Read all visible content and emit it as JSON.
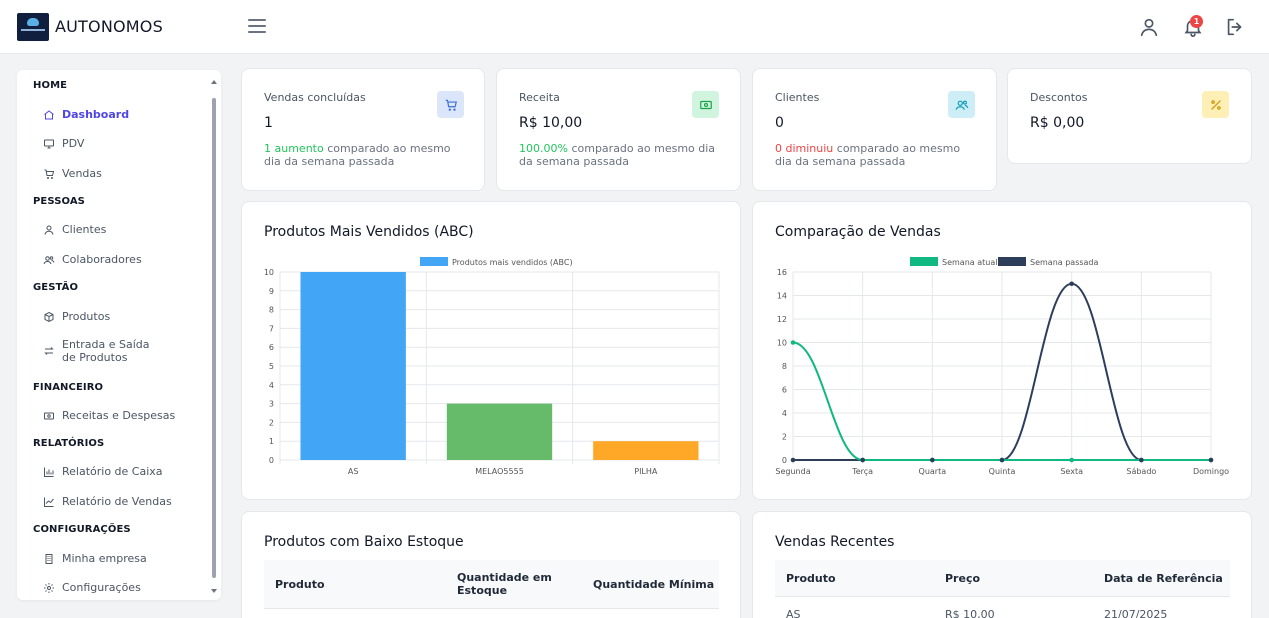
{
  "app": {
    "brand": "AUTONOMOS",
    "notification_count": "1"
  },
  "sidebar": {
    "sections": [
      {
        "label": "HOME",
        "items": [
          {
            "label": "Dashboard",
            "icon": "home-icon",
            "active": true
          },
          {
            "label": "PDV",
            "icon": "monitor-icon"
          },
          {
            "label": "Vendas",
            "icon": "cart-icon"
          }
        ]
      },
      {
        "label": "PESSOAS",
        "items": [
          {
            "label": "Clientes",
            "icon": "user-icon"
          },
          {
            "label": "Colaboradores",
            "icon": "users-icon"
          }
        ]
      },
      {
        "label": "GESTÃO",
        "items": [
          {
            "label": "Produtos",
            "icon": "box-icon"
          },
          {
            "label": "Entrada e Saída de Produtos",
            "icon": "transfer-icon"
          }
        ]
      },
      {
        "label": "FINANCEIRO",
        "items": [
          {
            "label": "Receitas e Despesas",
            "icon": "money-icon"
          }
        ]
      },
      {
        "label": "RELATÓRIOS",
        "items": [
          {
            "label": "Relatório de Caixa",
            "icon": "bar-chart-icon"
          },
          {
            "label": "Relatório de Vendas",
            "icon": "line-chart-icon"
          }
        ]
      },
      {
        "label": "CONFIGURAÇÕES",
        "items": [
          {
            "label": "Minha empresa",
            "icon": "building-icon"
          },
          {
            "label": "Configurações",
            "icon": "gear-icon"
          }
        ]
      }
    ]
  },
  "stats": [
    {
      "title": "Vendas concluídas",
      "value": "1",
      "highlight": "1 aumento",
      "highlight_color": "#22c55e",
      "note": " comparado ao mesmo dia da semana passada",
      "icon": "cart-icon",
      "icon_bg": "#dbe6fb",
      "icon_color": "#3b6fd8"
    },
    {
      "title": "Receita",
      "value": "R$ 10,00",
      "highlight": "100.00%",
      "highlight_color": "#22c55e",
      "note": " comparado ao mesmo dia da semana passada",
      "icon": "money-icon",
      "icon_bg": "#d1f4df",
      "icon_color": "#16a34a"
    },
    {
      "title": "Clientes",
      "value": "0",
      "highlight": "0 diminuiu",
      "highlight_color": "#ef4444",
      "note": " comparado ao mesmo dia da semana passada",
      "icon": "users-icon",
      "icon_bg": "#cdeef6",
      "icon_color": "#0e9bb8"
    },
    {
      "title": "Descontos",
      "value": "R$ 0,00",
      "highlight": "",
      "highlight_color": "#22c55e",
      "note": "",
      "icon": "percent-icon",
      "icon_bg": "#fdefb5",
      "icon_color": "#d19a0a"
    }
  ],
  "chart_data": [
    {
      "type": "bar",
      "title": "Produtos Mais Vendidos (ABC)",
      "categories": [
        "AS",
        "MELAO5555",
        "PILHA"
      ],
      "series": [
        {
          "name": "Produtos mais vendidos (ABC)",
          "values": [
            10,
            3,
            1
          ]
        }
      ],
      "colors": [
        "#42a5f5",
        "#66bb6a",
        "#ffa726"
      ],
      "legend_color": "#42a5f5",
      "ylim": [
        0,
        10
      ],
      "yticks": [
        0,
        1,
        2,
        3,
        4,
        5,
        6,
        7,
        8,
        9,
        10
      ],
      "grid": true,
      "legend": "top-center"
    },
    {
      "type": "line",
      "title": "Comparação de Vendas",
      "categories": [
        "Segunda",
        "Terça",
        "Quarta",
        "Quinta",
        "Sexta",
        "Sábado",
        "Domingo"
      ],
      "series": [
        {
          "name": "Semana atual",
          "values": [
            10,
            0,
            0,
            0,
            0,
            0,
            0
          ],
          "color": "#10b981"
        },
        {
          "name": "Semana passada",
          "values": [
            0,
            0,
            0,
            0,
            15,
            0,
            0
          ],
          "color": "#2c3e5a"
        }
      ],
      "ylim": [
        0,
        16
      ],
      "yticks": [
        0,
        2,
        4,
        6,
        8,
        10,
        12,
        14,
        16
      ],
      "grid": true,
      "legend": "top-center"
    }
  ],
  "low_stock": {
    "title": "Produtos com Baixo Estoque",
    "headers": [
      "Produto",
      "Quantidade em Estoque",
      "Quantidade Mínima"
    ]
  },
  "recent_sales": {
    "title": "Vendas Recentes",
    "headers": [
      "Produto",
      "Preço",
      "Data de Referência"
    ],
    "rows": [
      [
        "AS",
        "R$ 10,00",
        "21/07/2025"
      ]
    ]
  }
}
